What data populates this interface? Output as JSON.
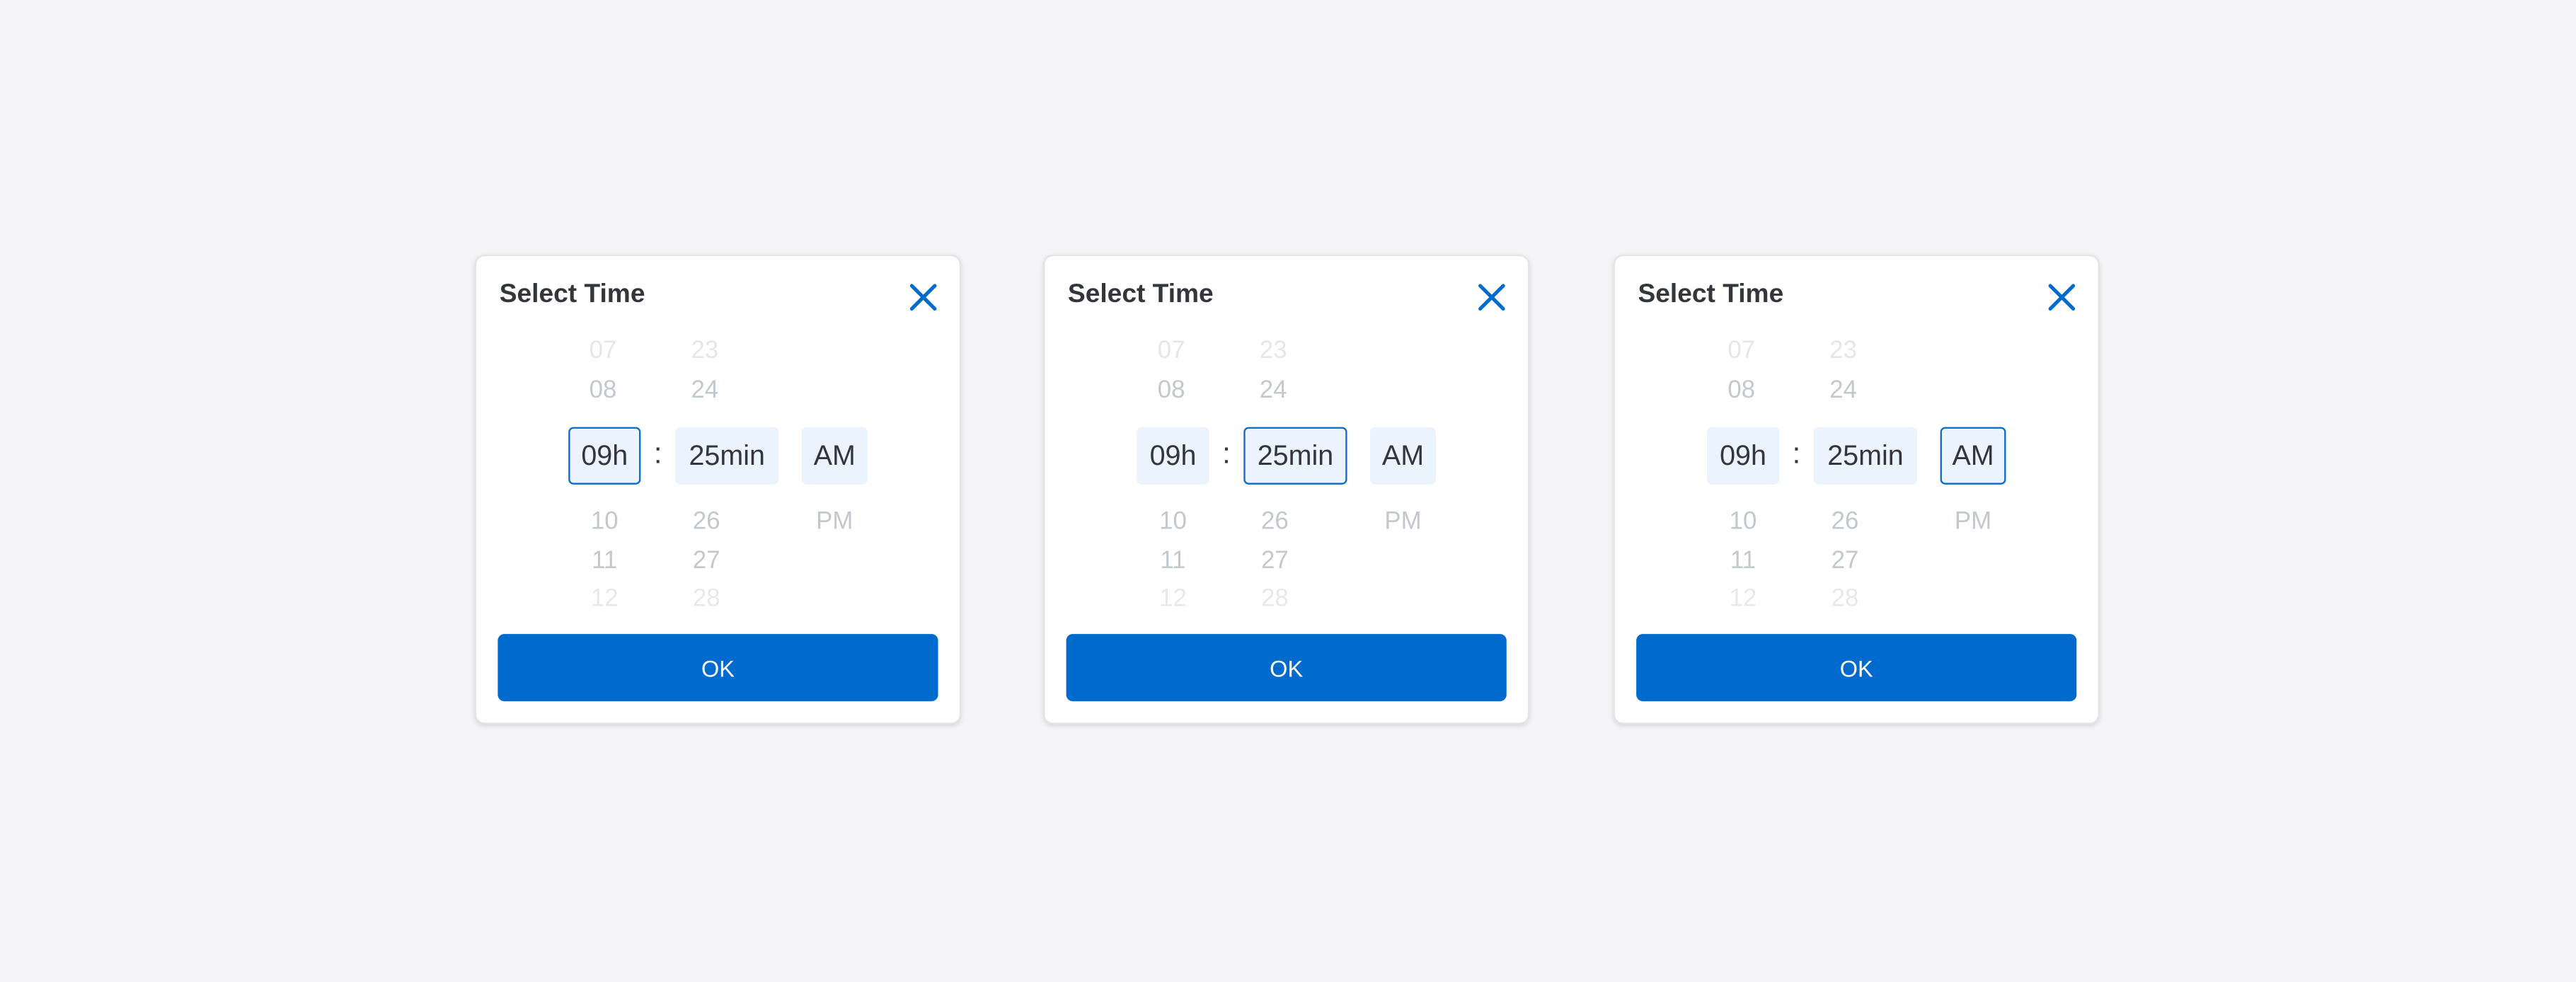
{
  "colors": {
    "accent": "#006BCC",
    "selected_bg": "#EBF3FE",
    "background": "#F5F5F7"
  },
  "cards": [
    {
      "title": "Select Time",
      "close_icon": "close-icon",
      "hours_above": [
        "07",
        "08"
      ],
      "hour": "09h",
      "hours_below": [
        "10",
        "11",
        "12"
      ],
      "colon": ":",
      "minutes_above": [
        "23",
        "24"
      ],
      "minute": "25min",
      "minutes_below": [
        "26",
        "27",
        "28"
      ],
      "period": "AM",
      "period_below": [
        "PM"
      ],
      "focused": "hour",
      "ok_label": "OK"
    },
    {
      "title": "Select Time",
      "close_icon": "close-icon",
      "hours_above": [
        "07",
        "08"
      ],
      "hour": "09h",
      "hours_below": [
        "10",
        "11",
        "12"
      ],
      "colon": ":",
      "minutes_above": [
        "23",
        "24"
      ],
      "minute": "25min",
      "minutes_below": [
        "26",
        "27",
        "28"
      ],
      "period": "AM",
      "period_below": [
        "PM"
      ],
      "focused": "minute",
      "ok_label": "OK"
    },
    {
      "title": "Select Time",
      "close_icon": "close-icon",
      "hours_above": [
        "07",
        "08"
      ],
      "hour": "09h",
      "hours_below": [
        "10",
        "11",
        "12"
      ],
      "colon": ":",
      "minutes_above": [
        "23",
        "24"
      ],
      "minute": "25min",
      "minutes_below": [
        "26",
        "27",
        "28"
      ],
      "period": "AM",
      "period_below": [
        "PM"
      ],
      "focused": "period",
      "ok_label": "OK"
    }
  ]
}
